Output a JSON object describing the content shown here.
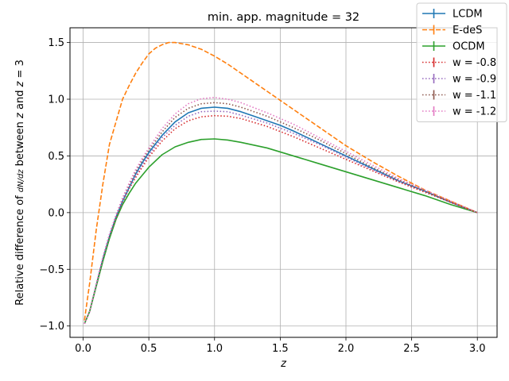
{
  "chart_data": {
    "type": "line",
    "title": "min. app. magnitude = 32",
    "xlabel": "z",
    "ylabel": "Relative difference of dN/dz between z and z = 3",
    "xlim": [
      -0.1,
      3.15
    ],
    "ylim": [
      -1.1,
      1.63
    ],
    "xticks": [
      0.0,
      0.5,
      1.0,
      1.5,
      2.0,
      2.5,
      3.0
    ],
    "xtick_labels": [
      "0.0",
      "0.5",
      "1.0",
      "1.5",
      "2.0",
      "2.5",
      "3.0"
    ],
    "yticks": [
      -1.0,
      -0.5,
      0.0,
      0.5,
      1.0,
      1.5
    ],
    "ytick_labels": [
      "−1.0",
      "−0.5",
      "0.0",
      "0.5",
      "1.0",
      "1.5"
    ],
    "grid": true,
    "legend_position": "top-right",
    "series": [
      {
        "name": "LCDM",
        "color": "#1f77b4",
        "style": "solid",
        "x": [
          0.01,
          0.05,
          0.1,
          0.15,
          0.2,
          0.25,
          0.3,
          0.35,
          0.4,
          0.45,
          0.5,
          0.6,
          0.7,
          0.8,
          0.9,
          1.0,
          1.1,
          1.2,
          1.3,
          1.4,
          1.5,
          1.6,
          1.8,
          2.0,
          2.2,
          2.4,
          2.6,
          2.8,
          3.0
        ],
        "y": [
          -0.98,
          -0.87,
          -0.64,
          -0.41,
          -0.21,
          -0.04,
          0.1,
          0.22,
          0.34,
          0.44,
          0.53,
          0.68,
          0.8,
          0.88,
          0.92,
          0.93,
          0.92,
          0.89,
          0.85,
          0.81,
          0.77,
          0.72,
          0.61,
          0.5,
          0.39,
          0.28,
          0.19,
          0.09,
          0.0
        ]
      },
      {
        "name": "E-deS",
        "color": "#ff7f0e",
        "style": "dashed",
        "x": [
          0.01,
          0.05,
          0.1,
          0.15,
          0.2,
          0.25,
          0.3,
          0.35,
          0.4,
          0.45,
          0.5,
          0.55,
          0.6,
          0.65,
          0.7,
          0.75,
          0.8,
          0.9,
          1.0,
          1.1,
          1.2,
          1.3,
          1.4,
          1.5,
          1.6,
          1.8,
          2.0,
          2.2,
          2.4,
          2.6,
          2.8,
          3.0
        ],
        "y": [
          -0.95,
          -0.62,
          -0.15,
          0.25,
          0.6,
          0.8,
          1.0,
          1.12,
          1.23,
          1.32,
          1.4,
          1.45,
          1.48,
          1.5,
          1.5,
          1.49,
          1.48,
          1.44,
          1.38,
          1.31,
          1.23,
          1.15,
          1.07,
          0.99,
          0.91,
          0.75,
          0.59,
          0.45,
          0.32,
          0.2,
          0.1,
          0.0
        ]
      },
      {
        "name": "OCDM",
        "color": "#2ca02c",
        "style": "solid",
        "x": [
          0.01,
          0.05,
          0.1,
          0.15,
          0.2,
          0.25,
          0.3,
          0.35,
          0.4,
          0.45,
          0.5,
          0.6,
          0.7,
          0.8,
          0.9,
          1.0,
          1.1,
          1.2,
          1.4,
          1.6,
          1.8,
          2.0,
          2.2,
          2.4,
          2.6,
          2.8,
          3.0
        ],
        "y": [
          -0.98,
          -0.87,
          -0.65,
          -0.43,
          -0.23,
          -0.06,
          0.07,
          0.17,
          0.26,
          0.33,
          0.4,
          0.51,
          0.58,
          0.62,
          0.645,
          0.65,
          0.64,
          0.62,
          0.57,
          0.5,
          0.43,
          0.36,
          0.29,
          0.22,
          0.15,
          0.07,
          0.0
        ]
      },
      {
        "name": "w = -0.8",
        "color": "#d62728",
        "style": "dotted",
        "x": [
          0.01,
          0.05,
          0.1,
          0.15,
          0.2,
          0.25,
          0.3,
          0.35,
          0.4,
          0.45,
          0.5,
          0.6,
          0.7,
          0.8,
          0.9,
          1.0,
          1.1,
          1.2,
          1.4,
          1.6,
          1.8,
          2.0,
          2.2,
          2.4,
          2.6,
          2.8,
          3.0
        ],
        "y": [
          -0.98,
          -0.87,
          -0.64,
          -0.41,
          -0.21,
          -0.05,
          0.09,
          0.21,
          0.31,
          0.4,
          0.49,
          0.63,
          0.74,
          0.81,
          0.845,
          0.855,
          0.85,
          0.83,
          0.76,
          0.67,
          0.57,
          0.47,
          0.37,
          0.27,
          0.18,
          0.09,
          0.0
        ]
      },
      {
        "name": "w = -0.9",
        "color": "#9467bd",
        "style": "dotted",
        "x": [
          0.01,
          0.05,
          0.1,
          0.15,
          0.2,
          0.25,
          0.3,
          0.35,
          0.4,
          0.45,
          0.5,
          0.6,
          0.7,
          0.8,
          0.9,
          1.0,
          1.1,
          1.2,
          1.4,
          1.6,
          1.8,
          2.0,
          2.2,
          2.4,
          2.6,
          2.8,
          3.0
        ],
        "y": [
          -0.98,
          -0.87,
          -0.64,
          -0.41,
          -0.21,
          -0.04,
          0.1,
          0.22,
          0.33,
          0.42,
          0.51,
          0.66,
          0.77,
          0.85,
          0.89,
          0.895,
          0.89,
          0.86,
          0.79,
          0.7,
          0.6,
          0.49,
          0.38,
          0.28,
          0.19,
          0.09,
          0.0
        ]
      },
      {
        "name": "w = -1.1",
        "color": "#8c564b",
        "style": "dotted",
        "x": [
          0.01,
          0.05,
          0.1,
          0.15,
          0.2,
          0.25,
          0.3,
          0.35,
          0.4,
          0.45,
          0.5,
          0.6,
          0.7,
          0.8,
          0.9,
          1.0,
          1.1,
          1.2,
          1.4,
          1.6,
          1.8,
          2.0,
          2.2,
          2.4,
          2.6,
          2.8,
          3.0
        ],
        "y": [
          -0.98,
          -0.87,
          -0.63,
          -0.4,
          -0.2,
          -0.03,
          0.12,
          0.24,
          0.36,
          0.46,
          0.55,
          0.71,
          0.84,
          0.92,
          0.96,
          0.97,
          0.96,
          0.93,
          0.85,
          0.75,
          0.64,
          0.52,
          0.4,
          0.29,
          0.19,
          0.09,
          0.0
        ]
      },
      {
        "name": "w = -1.2",
        "color": "#e377c2",
        "style": "dotted",
        "x": [
          0.01,
          0.05,
          0.1,
          0.15,
          0.2,
          0.25,
          0.3,
          0.35,
          0.4,
          0.45,
          0.5,
          0.6,
          0.7,
          0.8,
          0.9,
          1.0,
          1.1,
          1.2,
          1.4,
          1.6,
          1.8,
          2.0,
          2.2,
          2.4,
          2.6,
          2.8,
          3.0
        ],
        "y": [
          -0.98,
          -0.87,
          -0.63,
          -0.39,
          -0.19,
          -0.02,
          0.13,
          0.26,
          0.38,
          0.48,
          0.57,
          0.74,
          0.87,
          0.96,
          1.005,
          1.015,
          1.0,
          0.97,
          0.88,
          0.78,
          0.66,
          0.54,
          0.42,
          0.3,
          0.2,
          0.1,
          0.0
        ]
      }
    ]
  }
}
